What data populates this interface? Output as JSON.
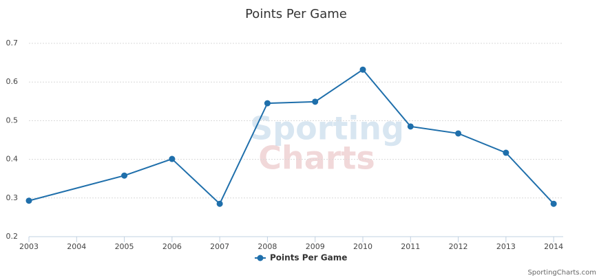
{
  "chart_data": {
    "type": "line",
    "title": "Points Per Game",
    "x": [
      2003,
      2005,
      2006,
      2007,
      2008,
      2009,
      2010,
      2011,
      2012,
      2013,
      2014
    ],
    "series": [
      {
        "name": "Points Per Game",
        "color": "#1f6fab",
        "values": [
          0.293,
          0.358,
          0.401,
          0.285,
          0.545,
          0.549,
          0.632,
          0.485,
          0.467,
          0.417,
          0.285
        ]
      }
    ],
    "xlim": [
      2003,
      2014.2
    ],
    "xticks": [
      2003,
      2004,
      2005,
      2006,
      2007,
      2008,
      2009,
      2010,
      2011,
      2012,
      2013,
      2014
    ],
    "ylim": [
      0.2,
      0.7
    ],
    "yticks": [
      0.2,
      0.3,
      0.4,
      0.5,
      0.6,
      0.7
    ],
    "grid": true,
    "legend": "bottom",
    "watermark": [
      "Sporting",
      "Charts"
    ],
    "credits": "SportingCharts.com"
  }
}
